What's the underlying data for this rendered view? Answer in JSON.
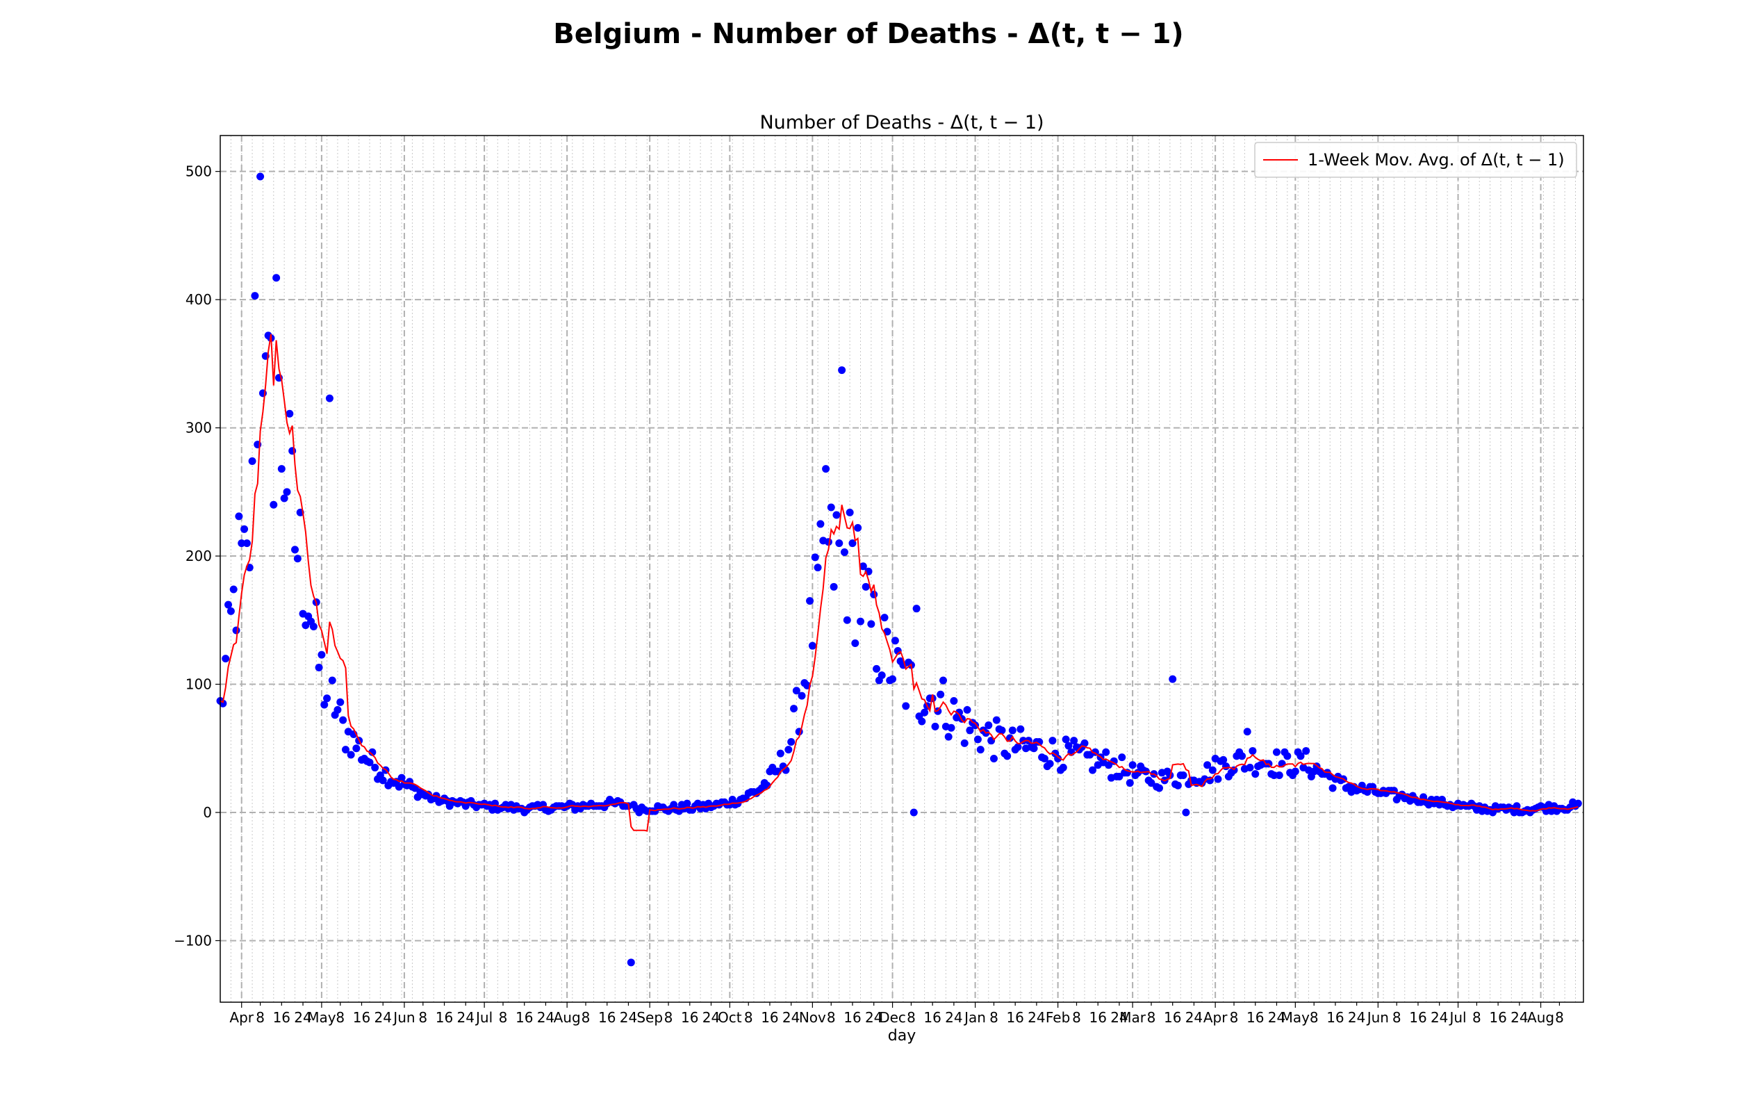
{
  "figure": {
    "suptitle": "Belgium - Number of Deaths - Δ(t, t − 1)"
  },
  "chart_data": {
    "type": "scatter",
    "title": "Number of Deaths - Δ(t, t − 1)",
    "xlabel": "day",
    "ylabel": "",
    "x_start": "2020-03-24",
    "x_end": "2021-08-15",
    "xlim": [
      "2020-03-24",
      "2021-08-17"
    ],
    "ylim": [
      -148,
      528
    ],
    "yticks": [
      -100,
      0,
      100,
      200,
      300,
      400,
      500
    ],
    "xtick_labels": [
      {
        "date": "2020-04-01",
        "label": "Apr"
      },
      {
        "date": "2020-04-08",
        "label": "8"
      },
      {
        "date": "2020-04-16",
        "label": "16"
      },
      {
        "date": "2020-04-24",
        "label": "24"
      },
      {
        "date": "2020-05-01",
        "label": "May"
      },
      {
        "date": "2020-05-08",
        "label": "8"
      },
      {
        "date": "2020-05-16",
        "label": "16"
      },
      {
        "date": "2020-05-24",
        "label": "24"
      },
      {
        "date": "2020-06-01",
        "label": "Jun"
      },
      {
        "date": "2020-06-08",
        "label": "8"
      },
      {
        "date": "2020-06-16",
        "label": "16"
      },
      {
        "date": "2020-06-24",
        "label": "24"
      },
      {
        "date": "2020-07-01",
        "label": "Jul"
      },
      {
        "date": "2020-07-08",
        "label": "8"
      },
      {
        "date": "2020-07-16",
        "label": "16"
      },
      {
        "date": "2020-07-24",
        "label": "24"
      },
      {
        "date": "2020-08-01",
        "label": "Aug"
      },
      {
        "date": "2020-08-08",
        "label": "8"
      },
      {
        "date": "2020-08-16",
        "label": "16"
      },
      {
        "date": "2020-08-24",
        "label": "24"
      },
      {
        "date": "2020-09-01",
        "label": "Sep"
      },
      {
        "date": "2020-09-08",
        "label": "8"
      },
      {
        "date": "2020-09-16",
        "label": "16"
      },
      {
        "date": "2020-09-24",
        "label": "24"
      },
      {
        "date": "2020-10-01",
        "label": "Oct"
      },
      {
        "date": "2020-10-08",
        "label": "8"
      },
      {
        "date": "2020-10-16",
        "label": "16"
      },
      {
        "date": "2020-10-24",
        "label": "24"
      },
      {
        "date": "2020-11-01",
        "label": "Nov"
      },
      {
        "date": "2020-11-08",
        "label": "8"
      },
      {
        "date": "2020-11-16",
        "label": "16"
      },
      {
        "date": "2020-11-24",
        "label": "24"
      },
      {
        "date": "2020-12-01",
        "label": "Dec"
      },
      {
        "date": "2020-12-08",
        "label": "8"
      },
      {
        "date": "2020-12-16",
        "label": "16"
      },
      {
        "date": "2020-12-24",
        "label": "24"
      },
      {
        "date": "2021-01-01",
        "label": "Jan"
      },
      {
        "date": "2021-01-08",
        "label": "8"
      },
      {
        "date": "2021-01-16",
        "label": "16"
      },
      {
        "date": "2021-01-24",
        "label": "24"
      },
      {
        "date": "2021-02-01",
        "label": "Feb"
      },
      {
        "date": "2021-02-08",
        "label": "8"
      },
      {
        "date": "2021-02-16",
        "label": "16"
      },
      {
        "date": "2021-02-24",
        "label": "24"
      },
      {
        "date": "2021-03-01",
        "label": "Mar"
      },
      {
        "date": "2021-03-08",
        "label": "8"
      },
      {
        "date": "2021-03-16",
        "label": "16"
      },
      {
        "date": "2021-03-24",
        "label": "24"
      },
      {
        "date": "2021-04-01",
        "label": "Apr"
      },
      {
        "date": "2021-04-08",
        "label": "8"
      },
      {
        "date": "2021-04-16",
        "label": "16"
      },
      {
        "date": "2021-04-24",
        "label": "24"
      },
      {
        "date": "2021-05-01",
        "label": "May"
      },
      {
        "date": "2021-05-08",
        "label": "8"
      },
      {
        "date": "2021-05-16",
        "label": "16"
      },
      {
        "date": "2021-05-24",
        "label": "24"
      },
      {
        "date": "2021-06-01",
        "label": "Jun"
      },
      {
        "date": "2021-06-08",
        "label": "8"
      },
      {
        "date": "2021-06-16",
        "label": "16"
      },
      {
        "date": "2021-06-24",
        "label": "24"
      },
      {
        "date": "2021-07-01",
        "label": "Jul"
      },
      {
        "date": "2021-07-08",
        "label": "8"
      },
      {
        "date": "2021-07-16",
        "label": "16"
      },
      {
        "date": "2021-07-24",
        "label": "24"
      },
      {
        "date": "2021-08-01",
        "label": "Aug"
      },
      {
        "date": "2021-08-08",
        "label": "8"
      }
    ],
    "grid": true,
    "legend": {
      "placement": "top-right",
      "entries": [
        "1-Week Mov. Avg. of Δ(t, t − 1)"
      ]
    },
    "colors": {
      "points": "#0000ff",
      "moving_average": "#ff0000",
      "grid_major": "#b0b0b0",
      "grid_minor": "#c8c8c8"
    },
    "anchors": [
      {
        "date": "2020-03-24",
        "value": 80
      },
      {
        "date": "2020-03-31",
        "value": 190
      },
      {
        "date": "2020-04-03",
        "value": 185
      },
      {
        "date": "2020-04-06",
        "value": 260
      },
      {
        "date": "2020-04-09",
        "value": 305
      },
      {
        "date": "2020-04-12",
        "value": 310
      },
      {
        "date": "2020-04-15",
        "value": 300
      },
      {
        "date": "2020-04-18",
        "value": 270
      },
      {
        "date": "2020-04-21",
        "value": 215
      },
      {
        "date": "2020-04-24",
        "value": 190
      },
      {
        "date": "2020-04-27",
        "value": 160
      },
      {
        "date": "2020-04-30",
        "value": 115
      },
      {
        "date": "2020-05-03",
        "value": 92
      },
      {
        "date": "2020-05-06",
        "value": 85
      },
      {
        "date": "2020-05-09",
        "value": 65
      },
      {
        "date": "2020-05-12",
        "value": 58
      },
      {
        "date": "2020-05-15",
        "value": 50
      },
      {
        "date": "2020-05-20",
        "value": 38
      },
      {
        "date": "2020-05-25",
        "value": 30
      },
      {
        "date": "2020-06-01",
        "value": 22
      },
      {
        "date": "2020-06-08",
        "value": 14
      },
      {
        "date": "2020-06-15",
        "value": 9
      },
      {
        "date": "2020-06-22",
        "value": 7
      },
      {
        "date": "2020-07-01",
        "value": 5
      },
      {
        "date": "2020-07-15",
        "value": 3
      },
      {
        "date": "2020-08-01",
        "value": 4
      },
      {
        "date": "2020-08-10",
        "value": 6
      },
      {
        "date": "2020-08-20",
        "value": 7
      },
      {
        "date": "2020-08-28",
        "value": 3
      },
      {
        "date": "2020-09-10",
        "value": 3
      },
      {
        "date": "2020-09-25",
        "value": 5
      },
      {
        "date": "2020-10-05",
        "value": 10
      },
      {
        "date": "2020-10-12",
        "value": 18
      },
      {
        "date": "2020-10-18",
        "value": 30
      },
      {
        "date": "2020-10-22",
        "value": 45
      },
      {
        "date": "2020-10-25",
        "value": 65
      },
      {
        "date": "2020-10-28",
        "value": 95
      },
      {
        "date": "2020-10-31",
        "value": 135
      },
      {
        "date": "2020-11-03",
        "value": 170
      },
      {
        "date": "2020-11-06",
        "value": 190
      },
      {
        "date": "2020-11-10",
        "value": 200
      },
      {
        "date": "2020-11-14",
        "value": 195
      },
      {
        "date": "2020-11-18",
        "value": 175
      },
      {
        "date": "2020-11-22",
        "value": 150
      },
      {
        "date": "2020-11-26",
        "value": 130
      },
      {
        "date": "2020-12-01",
        "value": 115
      },
      {
        "date": "2020-12-06",
        "value": 100
      },
      {
        "date": "2020-12-12",
        "value": 92
      },
      {
        "date": "2020-12-18",
        "value": 88
      },
      {
        "date": "2020-12-24",
        "value": 75
      },
      {
        "date": "2020-12-31",
        "value": 65
      },
      {
        "date": "2021-01-08",
        "value": 57
      },
      {
        "date": "2021-01-15",
        "value": 52
      },
      {
        "date": "2021-01-22",
        "value": 50
      },
      {
        "date": "2021-01-30",
        "value": 47
      },
      {
        "date": "2021-02-10",
        "value": 43
      },
      {
        "date": "2021-02-20",
        "value": 38
      },
      {
        "date": "2021-03-01",
        "value": 30
      },
      {
        "date": "2021-03-10",
        "value": 26
      },
      {
        "date": "2021-03-20",
        "value": 28
      },
      {
        "date": "2021-03-28",
        "value": 30
      },
      {
        "date": "2021-04-05",
        "value": 38
      },
      {
        "date": "2021-04-15",
        "value": 42
      },
      {
        "date": "2021-04-25",
        "value": 38
      },
      {
        "date": "2021-05-05",
        "value": 38
      },
      {
        "date": "2021-05-12",
        "value": 30
      },
      {
        "date": "2021-05-18",
        "value": 22
      },
      {
        "date": "2021-05-28",
        "value": 17
      },
      {
        "date": "2021-06-08",
        "value": 13
      },
      {
        "date": "2021-06-18",
        "value": 10
      },
      {
        "date": "2021-06-28",
        "value": 6
      },
      {
        "date": "2021-07-10",
        "value": 3
      },
      {
        "date": "2021-07-25",
        "value": 2
      },
      {
        "date": "2021-08-05",
        "value": 4
      },
      {
        "date": "2021-08-15",
        "value": 5
      }
    ],
    "outliers": [
      {
        "date": "2020-04-08",
        "value": 496
      },
      {
        "date": "2020-04-06",
        "value": 403
      },
      {
        "date": "2020-04-14",
        "value": 417
      },
      {
        "date": "2020-04-09",
        "value": 327
      },
      {
        "date": "2020-05-04",
        "value": 323
      },
      {
        "date": "2020-11-12",
        "value": 345
      },
      {
        "date": "2020-11-06",
        "value": 268
      },
      {
        "date": "2020-11-18",
        "value": 222
      },
      {
        "date": "2020-12-10",
        "value": 159
      },
      {
        "date": "2020-08-25",
        "value": -117
      },
      {
        "date": "2020-12-09",
        "value": 0
      },
      {
        "date": "2021-03-16",
        "value": 104
      },
      {
        "date": "2021-03-21",
        "value": 0
      },
      {
        "date": "2021-04-13",
        "value": 63
      }
    ],
    "moving_average_annotations": [
      {
        "date": "2020-08-26",
        "value": -14
      },
      {
        "date": "2020-08-29",
        "value": -14
      },
      {
        "date": "2020-09-01",
        "value": 2
      },
      {
        "date": "2020-04-13",
        "value": 333
      }
    ]
  }
}
